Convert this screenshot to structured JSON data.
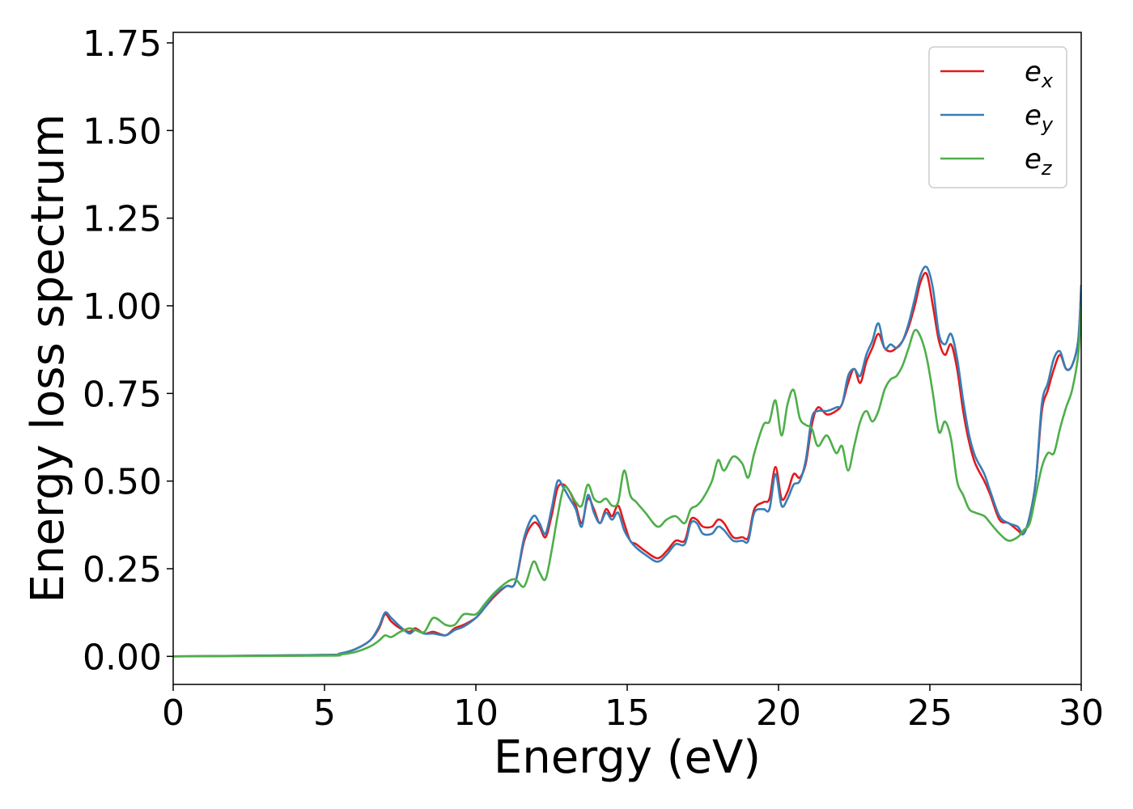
{
  "chart_data": {
    "type": "line",
    "xlabel": "Energy (eV)",
    "ylabel": "Energy loss spectrum",
    "xlim": [
      0,
      30
    ],
    "ylim": [
      -0.08,
      1.78
    ],
    "xticks": [
      0,
      5,
      10,
      15,
      20,
      25,
      30
    ],
    "xtick_labels": [
      "0",
      "5",
      "10",
      "15",
      "20",
      "25",
      "30"
    ],
    "yticks": [
      0.0,
      0.25,
      0.5,
      0.75,
      1.0,
      1.25,
      1.5,
      1.75
    ],
    "ytick_labels": [
      "0.00",
      "0.25",
      "0.50",
      "0.75",
      "1.00",
      "1.25",
      "1.50",
      "1.75"
    ],
    "grid": false,
    "legend_position": "top-right",
    "series": [
      {
        "name": "e_x",
        "label_base": "e",
        "label_sub": "x",
        "color": "#e41a1c",
        "x": [
          0,
          5,
          5.5,
          6,
          6.5,
          6.8,
          7.0,
          7.2,
          7.5,
          7.8,
          8.0,
          8.3,
          8.6,
          9.0,
          9.3,
          9.6,
          10.0,
          10.3,
          10.6,
          11.0,
          11.3,
          11.6,
          11.9,
          12.1,
          12.3,
          12.5,
          12.7,
          12.9,
          13.1,
          13.3,
          13.5,
          13.7,
          13.9,
          14.1,
          14.3,
          14.5,
          14.7,
          14.9,
          15.1,
          15.3,
          15.6,
          16.0,
          16.3,
          16.6,
          16.9,
          17.1,
          17.3,
          17.5,
          17.8,
          18.0,
          18.2,
          18.5,
          18.8,
          19.0,
          19.2,
          19.5,
          19.7,
          19.9,
          20.1,
          20.3,
          20.5,
          20.7,
          20.9,
          21.1,
          21.3,
          21.6,
          21.9,
          22.1,
          22.3,
          22.5,
          22.7,
          22.9,
          23.1,
          23.3,
          23.5,
          23.7,
          23.9,
          24.1,
          24.3,
          24.5,
          24.7,
          24.9,
          25.1,
          25.3,
          25.5,
          25.7,
          25.9,
          26.1,
          26.3,
          26.5,
          26.8,
          27.0,
          27.3,
          27.6,
          27.9,
          28.1,
          28.3,
          28.5,
          28.7,
          28.9,
          29.1,
          29.3,
          29.5,
          29.7,
          29.9,
          30.0
        ],
        "y": [
          0.0,
          0.004,
          0.008,
          0.02,
          0.045,
          0.08,
          0.12,
          0.1,
          0.08,
          0.07,
          0.08,
          0.065,
          0.07,
          0.06,
          0.08,
          0.09,
          0.11,
          0.14,
          0.17,
          0.2,
          0.21,
          0.33,
          0.38,
          0.37,
          0.34,
          0.4,
          0.48,
          0.49,
          0.47,
          0.43,
          0.38,
          0.45,
          0.42,
          0.38,
          0.42,
          0.4,
          0.43,
          0.38,
          0.33,
          0.32,
          0.3,
          0.28,
          0.3,
          0.33,
          0.33,
          0.39,
          0.39,
          0.37,
          0.37,
          0.39,
          0.38,
          0.34,
          0.34,
          0.34,
          0.42,
          0.44,
          0.45,
          0.54,
          0.45,
          0.47,
          0.52,
          0.51,
          0.55,
          0.66,
          0.71,
          0.69,
          0.7,
          0.72,
          0.78,
          0.82,
          0.78,
          0.84,
          0.88,
          0.92,
          0.88,
          0.87,
          0.88,
          0.9,
          0.94,
          1.0,
          1.07,
          1.09,
          1.0,
          0.9,
          0.86,
          0.89,
          0.82,
          0.7,
          0.61,
          0.55,
          0.5,
          0.46,
          0.39,
          0.38,
          0.36,
          0.35,
          0.4,
          0.5,
          0.7,
          0.76,
          0.82,
          0.86,
          0.82,
          0.83,
          0.9,
          1.05
        ]
      },
      {
        "name": "e_y",
        "label_base": "e",
        "label_sub": "y",
        "color": "#377eb8",
        "x": [
          0,
          5,
          5.5,
          6,
          6.5,
          6.8,
          7.0,
          7.2,
          7.5,
          7.8,
          8.0,
          8.3,
          8.6,
          9.0,
          9.3,
          9.6,
          10.0,
          10.3,
          10.6,
          11.0,
          11.3,
          11.6,
          11.9,
          12.1,
          12.3,
          12.5,
          12.7,
          12.9,
          13.1,
          13.3,
          13.5,
          13.7,
          13.9,
          14.1,
          14.3,
          14.5,
          14.7,
          14.9,
          15.1,
          15.3,
          15.6,
          16.0,
          16.3,
          16.6,
          16.9,
          17.1,
          17.3,
          17.5,
          17.8,
          18.0,
          18.2,
          18.5,
          18.8,
          19.0,
          19.2,
          19.5,
          19.7,
          19.9,
          20.1,
          20.3,
          20.5,
          20.7,
          20.9,
          21.1,
          21.3,
          21.6,
          21.9,
          22.1,
          22.3,
          22.5,
          22.7,
          22.9,
          23.1,
          23.3,
          23.5,
          23.7,
          23.9,
          24.1,
          24.3,
          24.5,
          24.7,
          24.9,
          25.1,
          25.3,
          25.5,
          25.7,
          25.9,
          26.1,
          26.3,
          26.5,
          26.8,
          27.0,
          27.3,
          27.6,
          27.9,
          28.1,
          28.3,
          28.5,
          28.7,
          28.9,
          29.1,
          29.3,
          29.5,
          29.7,
          29.9,
          30.0
        ],
        "y": [
          0.0,
          0.004,
          0.008,
          0.02,
          0.045,
          0.085,
          0.125,
          0.11,
          0.085,
          0.065,
          0.075,
          0.065,
          0.065,
          0.06,
          0.075,
          0.085,
          0.11,
          0.14,
          0.175,
          0.2,
          0.21,
          0.34,
          0.4,
          0.38,
          0.35,
          0.42,
          0.5,
          0.48,
          0.45,
          0.42,
          0.37,
          0.46,
          0.41,
          0.38,
          0.41,
          0.39,
          0.41,
          0.36,
          0.33,
          0.31,
          0.29,
          0.27,
          0.29,
          0.32,
          0.32,
          0.38,
          0.38,
          0.35,
          0.35,
          0.37,
          0.36,
          0.33,
          0.33,
          0.33,
          0.41,
          0.42,
          0.42,
          0.52,
          0.43,
          0.45,
          0.49,
          0.5,
          0.56,
          0.68,
          0.7,
          0.7,
          0.71,
          0.72,
          0.8,
          0.82,
          0.8,
          0.86,
          0.9,
          0.95,
          0.88,
          0.89,
          0.88,
          0.9,
          0.95,
          1.02,
          1.09,
          1.11,
          1.05,
          0.92,
          0.89,
          0.92,
          0.85,
          0.73,
          0.63,
          0.57,
          0.52,
          0.47,
          0.4,
          0.38,
          0.37,
          0.35,
          0.4,
          0.5,
          0.72,
          0.78,
          0.85,
          0.87,
          0.82,
          0.83,
          0.9,
          1.06
        ]
      },
      {
        "name": "e_z",
        "label_base": "e",
        "label_sub": "z",
        "color": "#4daf4a",
        "x": [
          0,
          5,
          5.5,
          6,
          6.5,
          6.8,
          7.0,
          7.2,
          7.5,
          7.8,
          8.0,
          8.3,
          8.6,
          9.0,
          9.3,
          9.6,
          10.0,
          10.3,
          10.6,
          11.0,
          11.3,
          11.6,
          11.9,
          12.1,
          12.3,
          12.5,
          12.7,
          12.9,
          13.1,
          13.3,
          13.5,
          13.7,
          13.9,
          14.1,
          14.3,
          14.5,
          14.7,
          14.9,
          15.1,
          15.3,
          15.6,
          16.0,
          16.3,
          16.6,
          16.9,
          17.1,
          17.3,
          17.5,
          17.8,
          18.0,
          18.2,
          18.5,
          18.8,
          19.0,
          19.2,
          19.5,
          19.7,
          19.9,
          20.1,
          20.3,
          20.5,
          20.7,
          20.9,
          21.1,
          21.3,
          21.6,
          21.9,
          22.1,
          22.3,
          22.5,
          22.7,
          22.9,
          23.1,
          23.3,
          23.5,
          23.7,
          23.9,
          24.1,
          24.3,
          24.5,
          24.7,
          24.9,
          25.1,
          25.3,
          25.5,
          25.7,
          25.9,
          26.1,
          26.3,
          26.5,
          26.8,
          27.0,
          27.3,
          27.6,
          27.9,
          28.1,
          28.3,
          28.5,
          28.7,
          28.9,
          29.1,
          29.3,
          29.5,
          29.7,
          29.9,
          30.0
        ],
        "y": [
          0.0,
          0.002,
          0.005,
          0.012,
          0.028,
          0.045,
          0.06,
          0.055,
          0.07,
          0.08,
          0.075,
          0.07,
          0.11,
          0.09,
          0.09,
          0.12,
          0.12,
          0.15,
          0.18,
          0.21,
          0.22,
          0.2,
          0.27,
          0.24,
          0.22,
          0.3,
          0.4,
          0.48,
          0.47,
          0.44,
          0.43,
          0.49,
          0.45,
          0.44,
          0.45,
          0.43,
          0.44,
          0.53,
          0.46,
          0.44,
          0.41,
          0.37,
          0.39,
          0.4,
          0.38,
          0.42,
          0.43,
          0.45,
          0.5,
          0.56,
          0.53,
          0.57,
          0.55,
          0.51,
          0.58,
          0.66,
          0.67,
          0.73,
          0.63,
          0.72,
          0.76,
          0.68,
          0.66,
          0.65,
          0.6,
          0.63,
          0.58,
          0.6,
          0.53,
          0.6,
          0.67,
          0.7,
          0.67,
          0.7,
          0.76,
          0.79,
          0.8,
          0.83,
          0.88,
          0.93,
          0.91,
          0.85,
          0.75,
          0.64,
          0.67,
          0.62,
          0.5,
          0.46,
          0.42,
          0.41,
          0.4,
          0.38,
          0.35,
          0.33,
          0.34,
          0.36,
          0.38,
          0.46,
          0.54,
          0.58,
          0.58,
          0.65,
          0.71,
          0.76,
          0.86,
          1.0
        ]
      }
    ]
  }
}
